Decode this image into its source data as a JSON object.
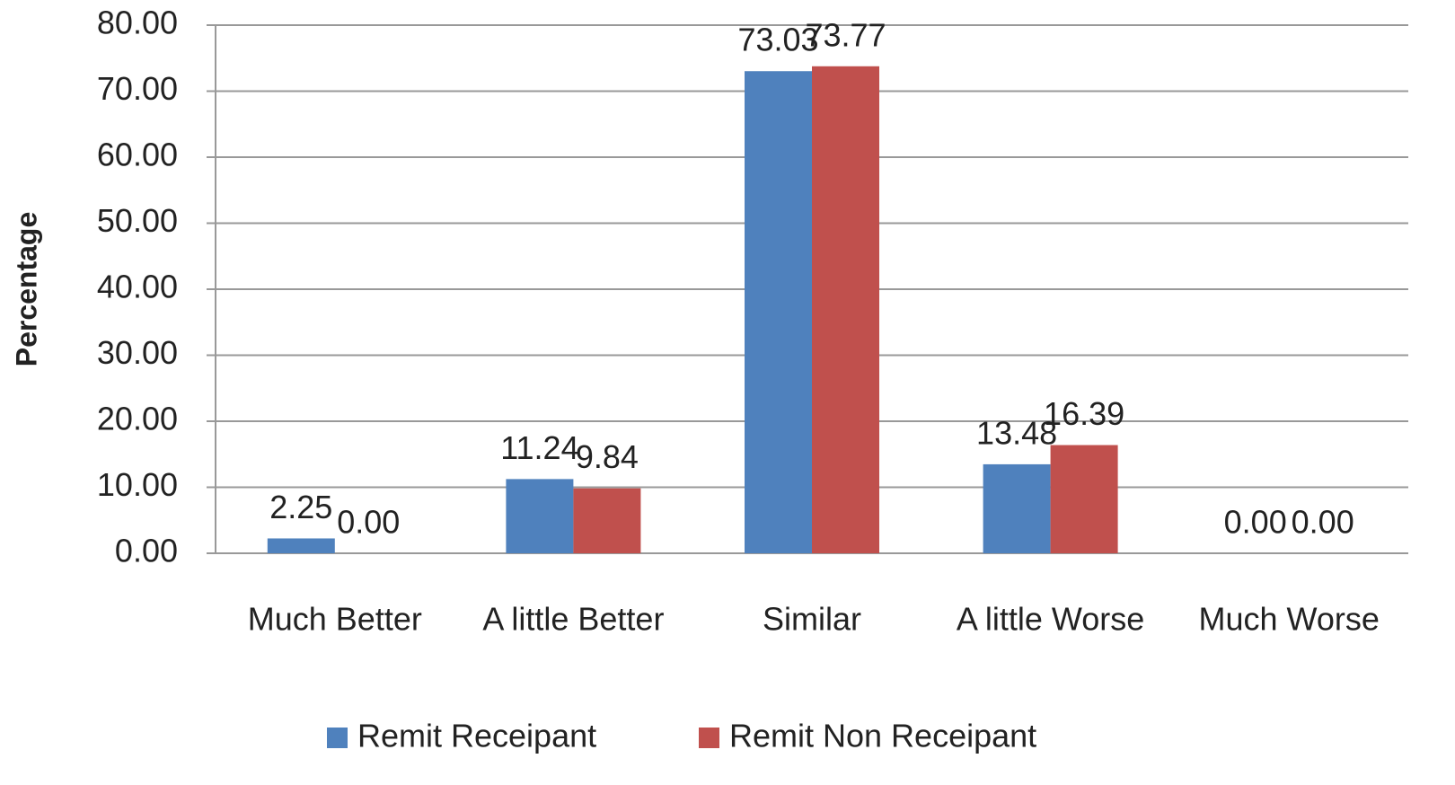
{
  "chart_data": {
    "type": "bar",
    "y_axis_label": "Percentage",
    "categories": [
      "Much Better",
      "A little Better",
      "Similar",
      "A little Worse",
      "Much Worse"
    ],
    "series": [
      {
        "name": "Remit Receipant",
        "color": "#4f81bd",
        "values": [
          2.25,
          11.24,
          73.03,
          13.48,
          0
        ],
        "value_labels": [
          "2.25",
          "11.24",
          "73.03",
          "13.48",
          "0.00"
        ]
      },
      {
        "name": "Remit Non Receipant",
        "color": "#c0504d",
        "values": [
          0,
          9.84,
          73.77,
          16.39,
          0
        ],
        "value_labels": [
          "0.00",
          "9.84",
          "73.77",
          "16.39",
          "0.00"
        ]
      }
    ],
    "ylim": [
      0,
      80
    ],
    "yticks": [
      {
        "value": 0,
        "label": "0.00"
      },
      {
        "value": 10,
        "label": "10.00"
      },
      {
        "value": 20,
        "label": "20.00"
      },
      {
        "value": 30,
        "label": "30.00"
      },
      {
        "value": 40,
        "label": "40.00"
      },
      {
        "value": 50,
        "label": "50.00"
      },
      {
        "value": 60,
        "label": "60.00"
      },
      {
        "value": 70,
        "label": "70.00"
      },
      {
        "value": 80,
        "label": "80.00"
      }
    ],
    "grid": true,
    "legend": "bottom"
  }
}
